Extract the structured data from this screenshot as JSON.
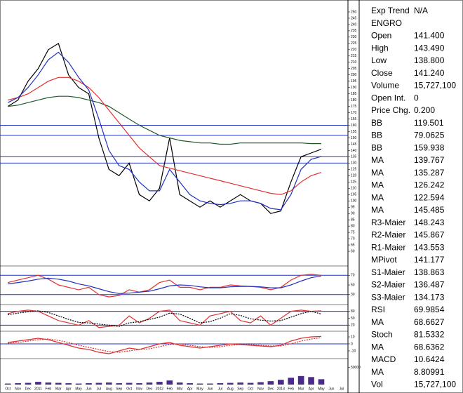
{
  "chart_data": [
    {
      "type": "line",
      "categories": [
        "Oct",
        "Nov",
        "Dec",
        "2011",
        "Feb",
        "Mar",
        "Apr",
        "May",
        "Jun",
        "Jul",
        "Aug",
        "Sep",
        "Oct",
        "Nov",
        "Dec",
        "2012",
        "Feb",
        "Mar",
        "Apr",
        "May",
        "Jun",
        "Jul",
        "Aug",
        "Sep",
        "Oct",
        "Nov",
        "Dec",
        "2013",
        "Feb",
        "Mar",
        "Apr",
        "May",
        "Jun",
        "Jul"
      ],
      "series": [
        {
          "name": "Close",
          "color": "#000000",
          "values": [
            175,
            180,
            195,
            205,
            220,
            225,
            200,
            190,
            185,
            150,
            125,
            120,
            130,
            105,
            100,
            110,
            150,
            105,
            100,
            95,
            100,
            95,
            100,
            105,
            100,
            98,
            90,
            92,
            115,
            135,
            138,
            141,
            null,
            null
          ]
        },
        {
          "name": "MA",
          "color": "#1f5a2a",
          "values": [
            175,
            176,
            178,
            180,
            182,
            183,
            183,
            182,
            180,
            178,
            175,
            170,
            165,
            160,
            156,
            152,
            150,
            148,
            147,
            146,
            146,
            145,
            145,
            146,
            146,
            146,
            146,
            146,
            146,
            146,
            145.5,
            145.5,
            null,
            null
          ]
        },
        {
          "name": "MA",
          "color": "#e03030",
          "values": [
            180,
            182,
            185,
            190,
            195,
            198,
            198,
            195,
            190,
            182,
            172,
            162,
            152,
            142,
            135,
            128,
            126,
            124,
            122,
            120,
            118,
            116,
            114,
            112,
            110,
            108,
            106,
            105,
            108,
            115,
            120,
            122.6,
            null,
            null
          ]
        },
        {
          "name": "MA",
          "color": "#2030c0",
          "values": [
            178,
            182,
            190,
            200,
            212,
            218,
            210,
            198,
            188,
            165,
            140,
            128,
            125,
            115,
            108,
            108,
            125,
            115,
            105,
            100,
            98,
            97,
            98,
            100,
            100,
            98,
            94,
            93,
            105,
            125,
            133,
            135.3,
            null,
            null
          ]
        }
      ],
      "levels": [
        160,
        152,
        135,
        130
      ],
      "level_color": "#2030c0",
      "ylim": [
        50,
        255
      ],
      "yticks": [
        60,
        65,
        70,
        75,
        80,
        85,
        90,
        95,
        100,
        105,
        110,
        115,
        120,
        125,
        130,
        135,
        140,
        145,
        150,
        155,
        160,
        165,
        170,
        175,
        180,
        185,
        190,
        195,
        200,
        205,
        210,
        215,
        220,
        225,
        230,
        235,
        240,
        245,
        250
      ]
    },
    {
      "type": "line",
      "series": [
        {
          "name": "RSI",
          "color": "#e03030",
          "values": [
            55,
            60,
            65,
            70,
            62,
            50,
            45,
            40,
            45,
            30,
            25,
            28,
            40,
            35,
            40,
            55,
            60,
            45,
            45,
            40,
            45,
            45,
            50,
            48,
            47,
            45,
            40,
            45,
            60,
            70,
            72,
            70,
            null,
            null
          ]
        },
        {
          "name": "MA",
          "color": "#2030c0",
          "values": [
            52,
            55,
            58,
            62,
            64,
            62,
            58,
            52,
            48,
            42,
            36,
            32,
            33,
            35,
            37,
            42,
            48,
            50,
            49,
            46,
            44,
            44,
            46,
            47,
            47,
            46,
            44,
            44,
            50,
            58,
            65,
            68.7,
            null,
            null
          ]
        }
      ],
      "levels": [
        70,
        30
      ],
      "level_color": "#2030c0",
      "ylim": [
        15,
        85
      ],
      "yticks": [
        30,
        50,
        70
      ]
    },
    {
      "type": "line",
      "series": [
        {
          "name": "Stoch",
          "color": "#e03030",
          "values": [
            70,
            80,
            85,
            80,
            60,
            40,
            30,
            20,
            40,
            10,
            15,
            20,
            60,
            30,
            50,
            80,
            85,
            40,
            30,
            20,
            60,
            70,
            80,
            40,
            30,
            60,
            20,
            50,
            80,
            85,
            80,
            82,
            null,
            null
          ]
        },
        {
          "name": "MA",
          "color": "#000000",
          "values": [
            65,
            72,
            78,
            82,
            75,
            60,
            45,
            32,
            30,
            25,
            20,
            15,
            30,
            35,
            45,
            55,
            72,
            68,
            50,
            30,
            35,
            50,
            70,
            62,
            48,
            42,
            38,
            40,
            55,
            70,
            80,
            68.6,
            null,
            null
          ]
        }
      ],
      "levels": [
        80,
        20
      ],
      "level_color": "#2030c0",
      "ylim": [
        0,
        100
      ],
      "yticks": [
        20,
        50,
        80
      ]
    },
    {
      "type": "line",
      "series": [
        {
          "name": "MACD",
          "color": "#e03030",
          "values": [
            2,
            4,
            6,
            8,
            6,
            2,
            -2,
            -6,
            -8,
            -12,
            -14,
            -10,
            -6,
            -8,
            -4,
            0,
            2,
            -2,
            -4,
            -6,
            -4,
            -2,
            0,
            -1,
            -2,
            -3,
            -4,
            -2,
            4,
            8,
            10,
            10.6,
            null,
            null
          ]
        },
        {
          "name": "MA",
          "color": "#e03030",
          "values": [
            1,
            2,
            4,
            6,
            7,
            5,
            2,
            -2,
            -5,
            -8,
            -11,
            -12,
            -10,
            -8,
            -7,
            -4,
            -1,
            0,
            -2,
            -4,
            -5,
            -4,
            -2,
            -1,
            -1,
            -2,
            -3,
            -3,
            0,
            4,
            7,
            8.8,
            null,
            null
          ]
        }
      ],
      "levels": [
        0
      ],
      "level_color": "#2030c0",
      "ylim": [
        -20,
        15
      ],
      "yticks": [
        -10,
        0,
        10
      ]
    },
    {
      "type": "bar",
      "color": "#4a2a8a",
      "values": [
        3000,
        4000,
        5000,
        8000,
        6000,
        5000,
        4000,
        3000,
        4000,
        5000,
        6000,
        4000,
        5000,
        4000,
        6000,
        8000,
        12000,
        6000,
        4000,
        3000,
        3000,
        4000,
        5000,
        6000,
        5000,
        7000,
        10000,
        14000,
        20000,
        25000,
        22000,
        15727,
        null,
        null
      ],
      "ylim": [
        0,
        70000
      ],
      "yticks": [
        50000
      ]
    }
  ],
  "info_panel": {
    "rows": [
      {
        "label": "Exp Trend",
        "value": "N/A"
      },
      {
        "label": "ENGRO"
      },
      {
        "label": "Open",
        "value": "141.400"
      },
      {
        "label": "High",
        "value": "143.490"
      },
      {
        "label": "Low",
        "value": "138.800"
      },
      {
        "label": "Close",
        "value": "141.240"
      },
      {
        "label": "Volume",
        "value": "15,727,100"
      },
      {
        "label": "Open Int.",
        "value": "0"
      },
      {
        "label": "Price Chg.",
        "value": "0.200"
      },
      {
        "label": "BB",
        "value": "119.501"
      },
      {
        "label": "BB",
        "value": "79.0625"
      },
      {
        "label": "BB",
        "value": "159.938"
      },
      {
        "label": "MA",
        "value": "139.767"
      },
      {
        "label": "MA",
        "value": "135.287"
      },
      {
        "label": "MA",
        "value": "126.242"
      },
      {
        "label": "MA",
        "value": "122.594"
      },
      {
        "label": "MA",
        "value": "145.485"
      },
      {
        "label": "R3-Maier",
        "value": "148.243"
      },
      {
        "label": "R2-Maier",
        "value": "145.867"
      },
      {
        "label": "R1-Maier",
        "value": "143.553"
      },
      {
        "label": "MPivot",
        "value": "141.177"
      },
      {
        "label": "S1-Maier",
        "value": "138.863"
      },
      {
        "label": "S2-Maier",
        "value": "136.487"
      },
      {
        "label": "S3-Maier",
        "value": "134.173"
      },
      {
        "label": "RSI",
        "value": "69.9854"
      },
      {
        "label": "MA",
        "value": "68.6627"
      },
      {
        "label": "Stoch",
        "value": "81.5332"
      },
      {
        "label": "MA",
        "value": "68.6362"
      },
      {
        "label": "MACD",
        "value": "10.6424"
      },
      {
        "label": "MA",
        "value": "8.80991"
      },
      {
        "label": "Vol",
        "value": "15,727,100"
      }
    ]
  }
}
